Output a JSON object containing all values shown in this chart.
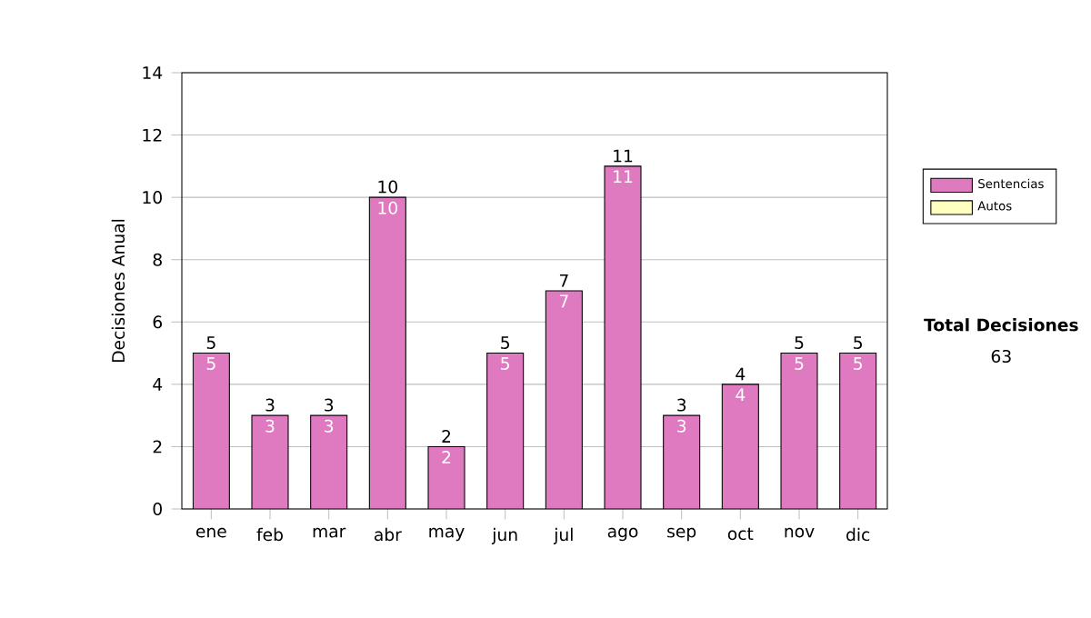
{
  "chart_data": {
    "type": "bar",
    "stacked": true,
    "ylabel": "Decisiones Anual",
    "categories": [
      "ene",
      "feb",
      "mar",
      "abr",
      "may",
      "jun",
      "jul",
      "ago",
      "sep",
      "oct",
      "nov",
      "dic"
    ],
    "series": [
      {
        "name": "Sentencias",
        "color": "#e07ac0",
        "values": [
          5,
          3,
          3,
          10,
          2,
          5,
          7,
          11,
          3,
          4,
          5,
          5
        ],
        "value_labels": [
          "5",
          "3",
          "3",
          "10",
          "2",
          "5",
          "7",
          "11",
          "3",
          "4",
          "5",
          "5"
        ]
      },
      {
        "name": "Autos",
        "color": "#ffffc0",
        "values": [
          0,
          0,
          0,
          0,
          0,
          0,
          0,
          0,
          0,
          0,
          0,
          0
        ]
      }
    ],
    "totals": [
      "5",
      "3",
      "3",
      "10",
      "2",
      "5",
      "7",
      "11",
      "3",
      "4",
      "5",
      "5"
    ],
    "ylim": [
      0,
      14
    ],
    "yticks": [
      0,
      2,
      4,
      6,
      8,
      10,
      12,
      14
    ],
    "grid": "y",
    "legend": "right",
    "annotations": [
      "Total Decisiones",
      "63"
    ]
  }
}
